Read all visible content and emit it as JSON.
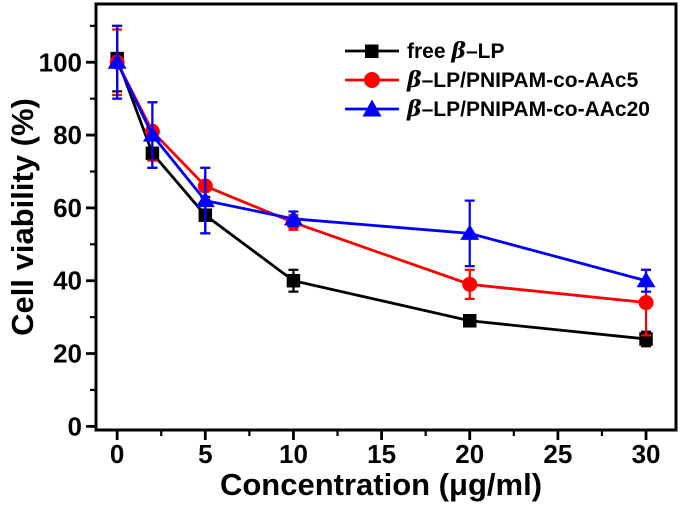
{
  "chart_data": {
    "type": "line",
    "title": "",
    "xlabel": "Concentration (μg/ml)",
    "ylabel": "Cell viability (%)",
    "x": [
      0,
      2,
      5,
      10,
      20,
      30
    ],
    "xlim": [
      -1.2,
      31.7
    ],
    "ylim": [
      -1,
      116
    ],
    "x_major_ticks": [
      0,
      5,
      10,
      15,
      20,
      25,
      30
    ],
    "x_minor_ticks": [
      2.5,
      7.5,
      12.5,
      17.5,
      22.5,
      27.5
    ],
    "y_major_ticks": [
      0,
      20,
      40,
      60,
      80,
      100
    ],
    "y_minor_ticks": [
      10,
      30,
      50,
      70,
      90,
      110
    ],
    "grid": false,
    "legend_position": "top-right-inside",
    "series": [
      {
        "name": "free β–LP",
        "marker": "square",
        "color": "#000000",
        "values": [
          101,
          75,
          58,
          40,
          29,
          24
        ],
        "errors": [
          9,
          4,
          5,
          3,
          1.5,
          2
        ]
      },
      {
        "name": "β–LP/PNIPAM-co-AAc5",
        "marker": "circle",
        "color": "#ff0000",
        "values": [
          100,
          81,
          66,
          56,
          39,
          34
        ],
        "errors": [
          9,
          8,
          5,
          2,
          4,
          9
        ]
      },
      {
        "name": "β–LP/PNIPAM-co-AAc20",
        "marker": "triangle",
        "color": "#0000ff",
        "values": [
          100,
          80,
          62,
          57,
          53,
          40
        ],
        "errors": [
          10,
          9,
          9,
          2,
          9,
          3
        ]
      }
    ]
  },
  "axes": {
    "xlabel": "Concentration (μg/ml)",
    "ylabel": "Cell viability (%)"
  },
  "legend": {
    "items": [
      {
        "pre": "free ",
        "beta": "β",
        "post": "–LP"
      },
      {
        "pre": "",
        "beta": "β",
        "post": "–LP/PNIPAM-co-AAc5"
      },
      {
        "pre": "",
        "beta": "β",
        "post": "–LP/PNIPAM-co-AAc20"
      }
    ]
  }
}
